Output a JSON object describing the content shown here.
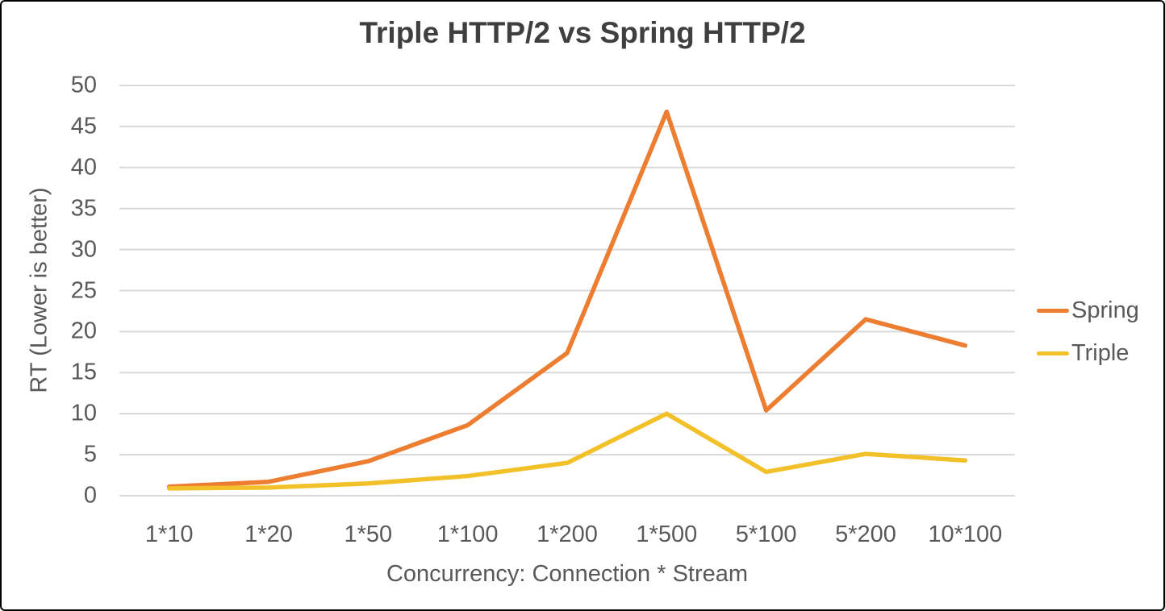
{
  "chart_data": {
    "type": "line",
    "title": "Triple HTTP/2 vs Spring HTTP/2",
    "xlabel": "Concurrency: Connection * Stream",
    "ylabel": "RT (Lower is better)",
    "categories": [
      "1*10",
      "1*20",
      "1*50",
      "1*100",
      "1*200",
      "1*500",
      "5*100",
      "5*200",
      "10*100"
    ],
    "series": [
      {
        "name": "Spring",
        "color": "#ED7D31",
        "values": [
          1.1,
          1.7,
          4.2,
          8.6,
          17.4,
          46.8,
          10.4,
          21.5,
          18.3
        ]
      },
      {
        "name": "Triple",
        "color": "#F2C029",
        "values": [
          0.9,
          1.0,
          1.5,
          2.4,
          4.0,
          10.0,
          2.9,
          5.1,
          4.3
        ]
      }
    ],
    "ylim": [
      0,
      50
    ],
    "ytick_step": 5,
    "grid": true,
    "grid_color": "#D9D9D9",
    "legend_position": "right",
    "legend_labels": [
      "Spring",
      "Triple"
    ]
  }
}
